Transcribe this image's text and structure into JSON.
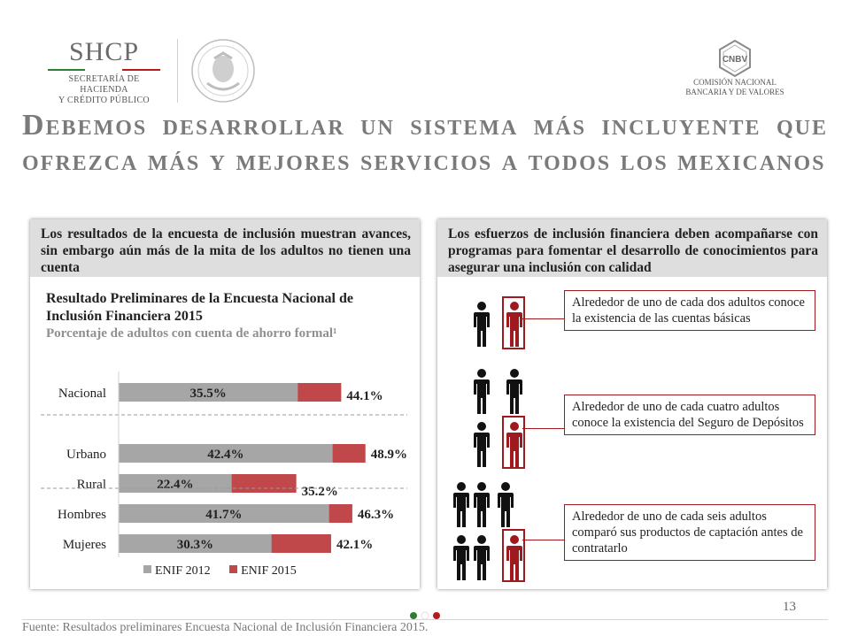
{
  "header": {
    "logo_left_title": "SHCP",
    "logo_left_subtitle_line1": "SECRETARÍA DE HACIENDA",
    "logo_left_subtitle_line2": "Y CRÉDITO PÚBLICO",
    "logo_right_title": "CNBV",
    "logo_right_subtitle_line1": "COMISIÓN NACIONAL",
    "logo_right_subtitle_line2": "BANCARIA Y DE VALORES",
    "brand_green": "#2e7d32",
    "brand_red": "#b71c1c"
  },
  "title": "Debemos desarrollar un sistema más incluyente que ofrezca más y mejores servicios a todos los mexicanos",
  "left_panel": {
    "header_text": "Los resultados de la encuesta de inclusión muestran avances, sin embargo aún más de la mita de los adultos no tienen una cuenta",
    "chart_title": "Resultado Preliminares de la Encuesta Nacional de Inclusión Financiera 2015",
    "chart_subtitle": "Porcentaje de adultos con cuenta de ahorro formal¹"
  },
  "chart_data": {
    "type": "bar",
    "orientation": "horizontal",
    "stacked": "overlay",
    "categories": [
      "Nacional",
      "Urbano",
      "Rural",
      "Hombres",
      "Mujeres"
    ],
    "series": [
      {
        "name": "ENIF 2012",
        "values": [
          35.5,
          42.4,
          22.4,
          41.7,
          30.3
        ],
        "labels": [
          "35.5%",
          "42.4%",
          "22.4%",
          "41.7%",
          "30.3%"
        ],
        "color": "#a6a6a6"
      },
      {
        "name": "ENIF 2015",
        "values": [
          44.1,
          48.9,
          35.2,
          46.3,
          42.1
        ],
        "labels": [
          "44.1%",
          "48.9%",
          "35.2%",
          "46.3%",
          "42.1%"
        ],
        "color": "#c0474a"
      }
    ],
    "xlim": [
      0,
      50
    ],
    "grid": false,
    "legend_position": "bottom",
    "separators_after": [
      "Nacional",
      "Rural"
    ]
  },
  "right_panel": {
    "header_text": "Los esfuerzos de inclusión financiera deben acompañarse con programas para fomentar el desarrollo de conocimientos para asegurar una inclusión con calidad",
    "facts": [
      {
        "text": "Alrededor de uno de cada dos adultos conoce la existencia de las cuentas básicas",
        "icon": "person-icon-group-2"
      },
      {
        "text": "Alrededor de uno de cada cuatro adultos conoce la existencia del Seguro de Depósitos",
        "icon": "person-icon-group-4"
      },
      {
        "text": "Alrededor de uno de cada seis adultos comparó sus productos de captación antes de contratarlo",
        "icon": "person-icon-group-6"
      }
    ],
    "accent_color": "#a0191e"
  },
  "footer": {
    "page_number": "13",
    "source": "Fuente: Resultados preliminares Encuesta Nacional de Inclusión Financiera 2015."
  }
}
